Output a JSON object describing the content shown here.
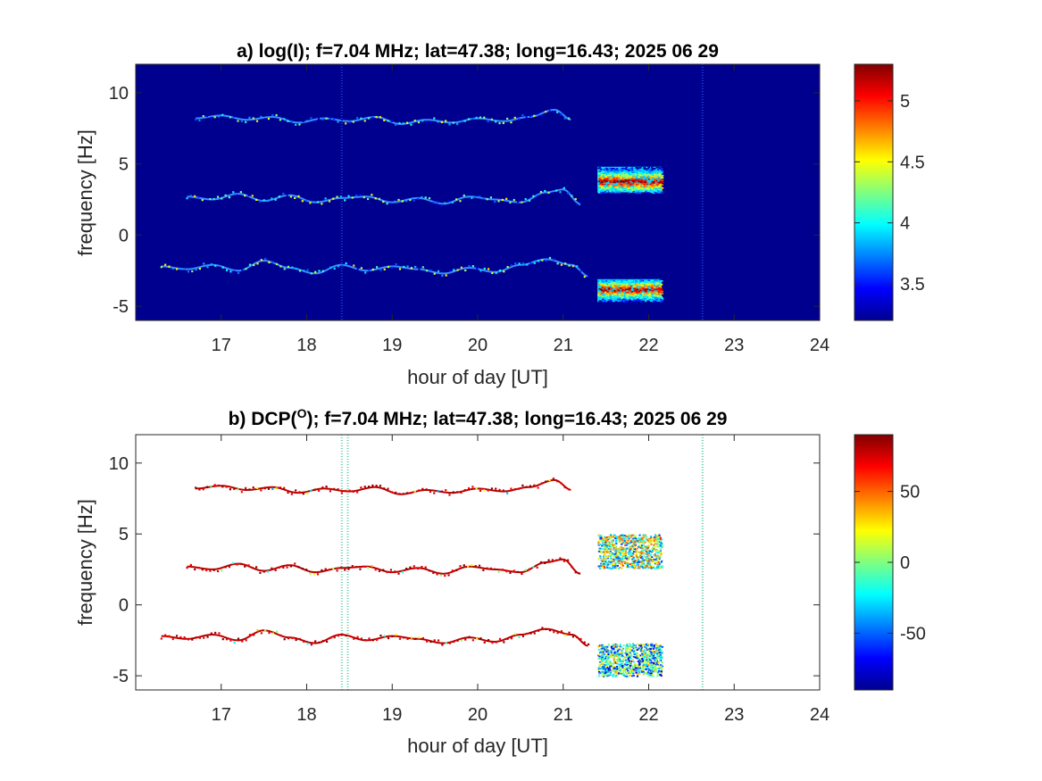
{
  "chart_data": [
    {
      "type": "heatmap",
      "title": "a) log(I); f=7.04 MHz;  lat=47.38; long=16.43; 2025 06 29",
      "xlabel": "hour of day [UT]",
      "ylabel": "frequency [Hz]",
      "xlim": [
        16,
        24
      ],
      "ylim": [
        -6,
        12
      ],
      "xticks": [
        17,
        18,
        19,
        20,
        21,
        22,
        23,
        24
      ],
      "yticks": [
        -5,
        0,
        5,
        10
      ],
      "background": "#00008f",
      "colorbar": {
        "colormap": "jet",
        "clim": [
          3.2,
          5.3
        ],
        "ticks": [
          3.5,
          4,
          4.5,
          5
        ]
      },
      "traces": [
        {
          "t": [
            16.7,
            17.0,
            17.3,
            17.6,
            17.9,
            18.2,
            18.5,
            18.8,
            19.1,
            19.4,
            19.7,
            20.0,
            20.3,
            20.6,
            20.9,
            21.1
          ],
          "f": [
            8.2,
            8.4,
            8.1,
            8.3,
            7.9,
            8.2,
            8.0,
            8.3,
            7.8,
            8.1,
            7.9,
            8.2,
            8.0,
            8.3,
            8.8,
            8.1
          ]
        },
        {
          "t": [
            16.6,
            16.9,
            17.2,
            17.5,
            17.8,
            18.1,
            18.4,
            18.7,
            19.0,
            19.3,
            19.6,
            19.9,
            20.2,
            20.5,
            20.8,
            21.0,
            21.2
          ],
          "f": [
            2.7,
            2.5,
            2.9,
            2.4,
            2.8,
            2.3,
            2.6,
            2.7,
            2.3,
            2.6,
            2.2,
            2.7,
            2.5,
            2.3,
            3.0,
            3.2,
            2.2
          ]
        },
        {
          "t": [
            16.3,
            16.6,
            16.9,
            17.2,
            17.5,
            17.8,
            18.1,
            18.4,
            18.7,
            19.0,
            19.3,
            19.6,
            19.9,
            20.2,
            20.5,
            20.8,
            21.1,
            21.3
          ],
          "f": [
            -2.2,
            -2.4,
            -2.1,
            -2.5,
            -1.8,
            -2.3,
            -2.7,
            -2.1,
            -2.5,
            -2.2,
            -2.4,
            -2.7,
            -2.3,
            -2.6,
            -2.1,
            -1.7,
            -2.1,
            -2.9
          ]
        }
      ],
      "blocks": [
        {
          "t": [
            21.4,
            22.15
          ],
          "f": [
            3.0,
            4.8
          ],
          "peak_f": 3.8
        },
        {
          "t": [
            21.4,
            22.15
          ],
          "f": [
            -4.7,
            -3.1
          ],
          "peak_f": -3.8
        }
      ],
      "vlines": [
        18.41,
        22.63
      ]
    },
    {
      "type": "heatmap",
      "title_prefix": "b) DCP(",
      "title_sup": "O",
      "title_suffix": ");  f=7.04 MHz;  lat=47.38; long=16.43; 2025 06 29",
      "xlabel": "hour of day [UT]",
      "ylabel": "frequency [Hz]",
      "xlim": [
        16,
        24
      ],
      "ylim": [
        -6,
        12
      ],
      "xticks": [
        17,
        18,
        19,
        20,
        21,
        22,
        23,
        24
      ],
      "yticks": [
        -5,
        0,
        5,
        10
      ],
      "background": "#ffffff",
      "colorbar": {
        "colormap": "jet",
        "clim": [
          -90,
          90
        ],
        "ticks": [
          -50,
          0,
          50
        ]
      },
      "trace_value": 80,
      "traces": [
        {
          "t": [
            16.7,
            17.0,
            17.3,
            17.6,
            17.9,
            18.2,
            18.5,
            18.8,
            19.1,
            19.4,
            19.7,
            20.0,
            20.3,
            20.6,
            20.9,
            21.1
          ],
          "f": [
            8.2,
            8.4,
            8.1,
            8.3,
            7.9,
            8.2,
            8.0,
            8.3,
            7.8,
            8.1,
            7.9,
            8.2,
            8.0,
            8.3,
            8.8,
            8.1
          ]
        },
        {
          "t": [
            16.6,
            16.9,
            17.2,
            17.5,
            17.8,
            18.1,
            18.4,
            18.7,
            19.0,
            19.3,
            19.6,
            19.9,
            20.2,
            20.5,
            20.8,
            21.0,
            21.2
          ],
          "f": [
            2.7,
            2.5,
            2.9,
            2.4,
            2.8,
            2.3,
            2.6,
            2.7,
            2.3,
            2.6,
            2.2,
            2.7,
            2.5,
            2.3,
            3.0,
            3.2,
            2.2
          ]
        },
        {
          "t": [
            16.3,
            16.6,
            16.9,
            17.2,
            17.5,
            17.8,
            18.1,
            18.4,
            18.7,
            19.0,
            19.3,
            19.6,
            19.9,
            20.2,
            20.5,
            20.8,
            21.1,
            21.3
          ],
          "f": [
            -2.2,
            -2.4,
            -2.1,
            -2.5,
            -1.8,
            -2.3,
            -2.7,
            -2.1,
            -2.5,
            -2.2,
            -2.4,
            -2.7,
            -2.3,
            -2.6,
            -2.1,
            -1.7,
            -2.1,
            -2.9
          ]
        }
      ],
      "blocks": [
        {
          "t": [
            21.4,
            22.15
          ],
          "f": [
            2.6,
            5.0
          ],
          "value_range": [
            -60,
            60
          ]
        },
        {
          "t": [
            21.4,
            22.15
          ],
          "f": [
            -5.0,
            -2.7
          ],
          "value_range": [
            -80,
            40
          ]
        }
      ],
      "vlines": [
        18.41,
        18.48,
        22.63
      ]
    }
  ]
}
